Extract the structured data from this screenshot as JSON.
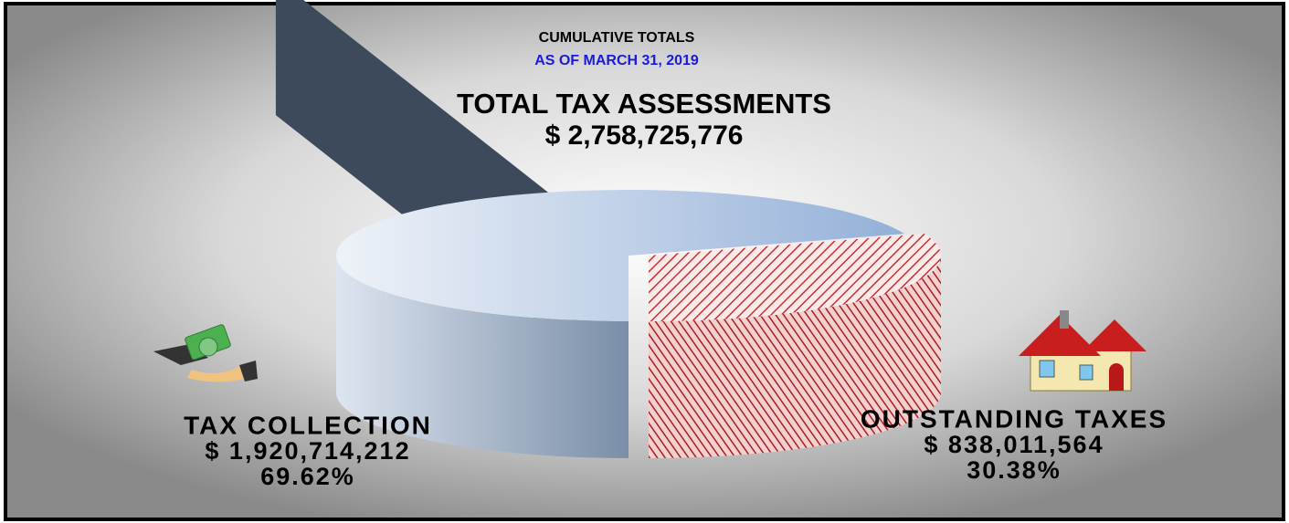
{
  "chart_data": {
    "type": "pie",
    "title": "CUMULATIVE TOTALS",
    "subtitle": "AS OF MARCH 31, 2019",
    "total_label": "TOTAL TAX ASSESSMENTS",
    "total_amount": "$ 2,758,725,776",
    "categories": [
      "TAX COLLECTION",
      "OUTSTANDING TAXES"
    ],
    "amounts": [
      "$ 1,920,714,212",
      "$ 838,011,564"
    ],
    "values": [
      69.62,
      30.38
    ],
    "value_labels": [
      "69.62%",
      "30.38%"
    ],
    "colors": [
      "#a9bfde",
      "#d94848"
    ]
  }
}
